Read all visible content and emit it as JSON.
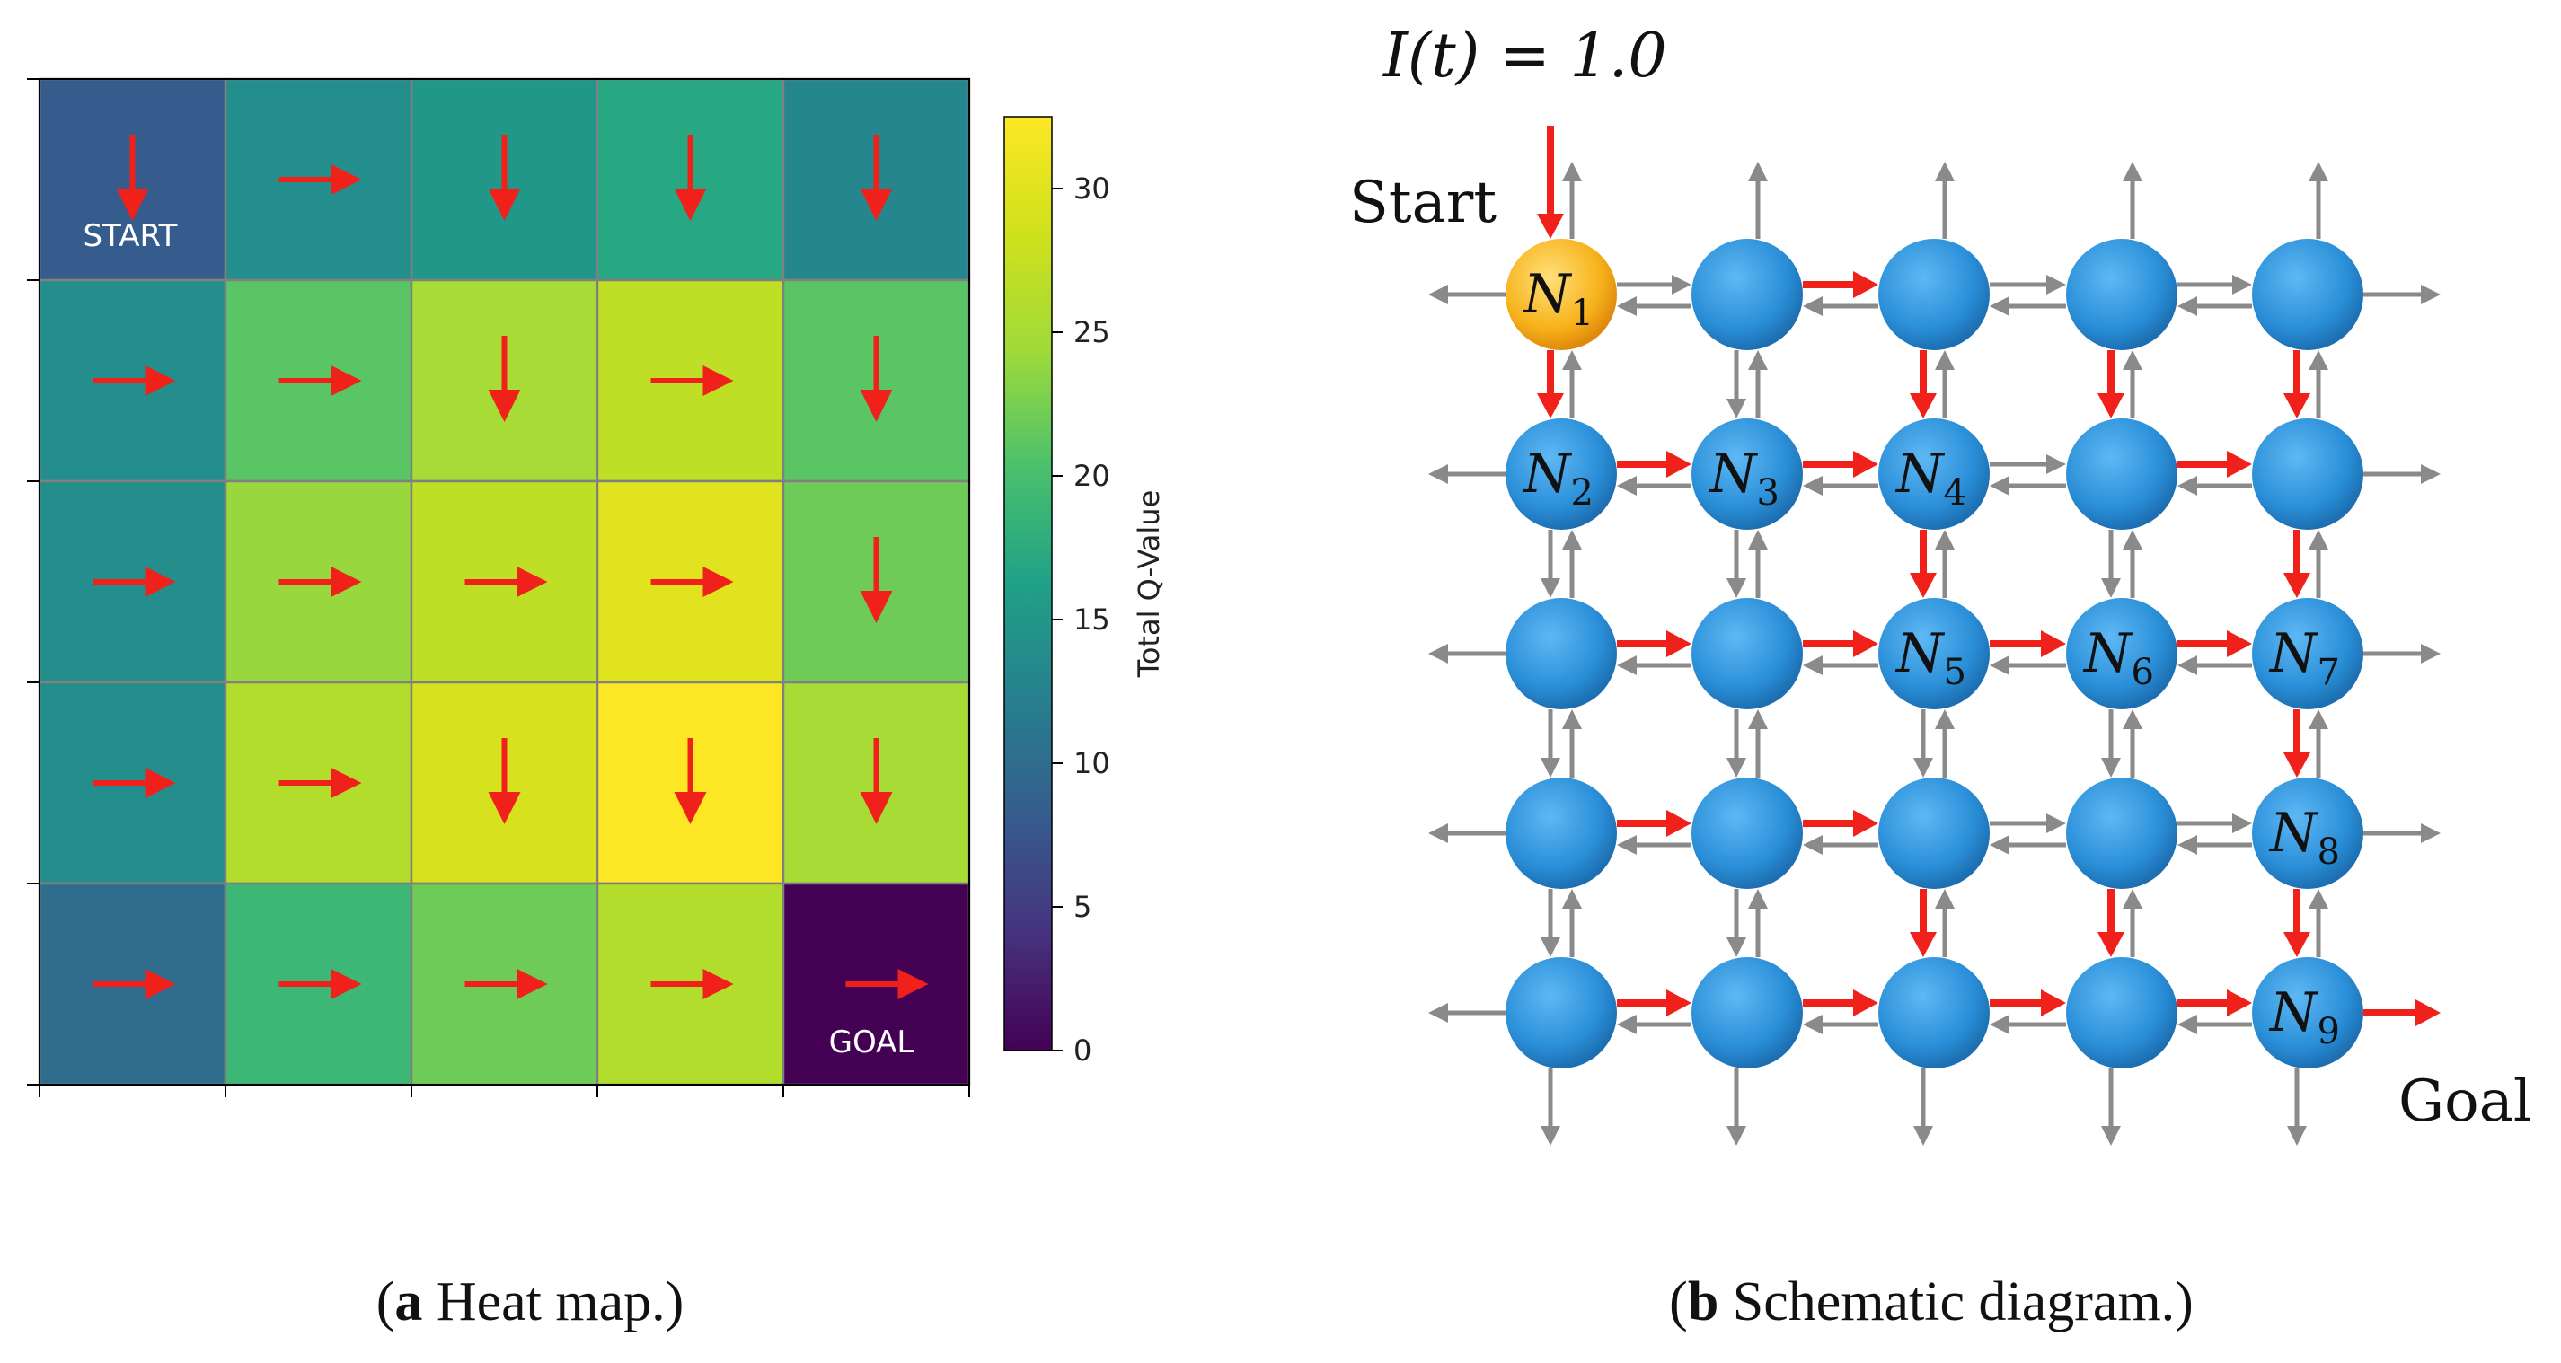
{
  "colors": {
    "arrow_red": "#f0201a",
    "arrow_gray": "#8a8a8a",
    "node_blue": "#2a8fd8",
    "node_highlight": "#f7b21b",
    "grid_line": "#808080"
  },
  "chart_data": [
    {
      "type": "heatmap",
      "title": "",
      "colorbar_label": "Total Q-Value",
      "colorbar_range": [
        0,
        32.5
      ],
      "colorbar_ticks": [
        0,
        5,
        10,
        15,
        20,
        25,
        30
      ],
      "colormap": "viridis",
      "rows": 5,
      "cols": 5,
      "values": [
        [
          8,
          14,
          15,
          17,
          13
        ],
        [
          14,
          21,
          25,
          27,
          21
        ],
        [
          14,
          24,
          27,
          30,
          22
        ],
        [
          14,
          26,
          29,
          32.5,
          25
        ],
        [
          10,
          19,
          22,
          26,
          0
        ]
      ],
      "policy": [
        [
          "down",
          "right",
          "down",
          "down",
          "down"
        ],
        [
          "right",
          "right",
          "down",
          "right",
          "down"
        ],
        [
          "right",
          "right",
          "right",
          "right",
          "down"
        ],
        [
          "right",
          "right",
          "down",
          "down",
          "down"
        ],
        [
          "right",
          "right",
          "right",
          "right",
          "right"
        ]
      ],
      "start_label": "START",
      "goal_label": "GOAL",
      "start_cell": [
        0,
        0
      ],
      "goal_cell": [
        4,
        4
      ]
    }
  ],
  "diagram": {
    "input_label": "I(t) = 1.0",
    "start_label": "Start",
    "goal_label": "Goal",
    "rows": 5,
    "cols": 5,
    "highlight_node": [
      0,
      0
    ],
    "nodes": [
      {
        "row": 0,
        "col": 0,
        "sub": "1"
      },
      {
        "row": 1,
        "col": 0,
        "sub": "2"
      },
      {
        "row": 1,
        "col": 1,
        "sub": "3"
      },
      {
        "row": 1,
        "col": 2,
        "sub": "4"
      },
      {
        "row": 2,
        "col": 2,
        "sub": "5"
      },
      {
        "row": 2,
        "col": 3,
        "sub": "6"
      },
      {
        "row": 2,
        "col": 4,
        "sub": "7"
      },
      {
        "row": 3,
        "col": 4,
        "sub": "8"
      },
      {
        "row": 4,
        "col": 4,
        "sub": "9"
      }
    ],
    "node_letter": "N",
    "red_right": [
      [
        0,
        1
      ],
      [
        1,
        0
      ],
      [
        1,
        1
      ],
      [
        1,
        3
      ],
      [
        2,
        0
      ],
      [
        2,
        1
      ],
      [
        2,
        2
      ],
      [
        2,
        3
      ],
      [
        3,
        0
      ],
      [
        3,
        1
      ],
      [
        4,
        0
      ],
      [
        4,
        1
      ],
      [
        4,
        2
      ],
      [
        4,
        3
      ],
      [
        4,
        4
      ]
    ],
    "red_down": [
      [
        0,
        0
      ],
      [
        0,
        2
      ],
      [
        0,
        3
      ],
      [
        0,
        4
      ],
      [
        1,
        2
      ],
      [
        1,
        4
      ],
      [
        2,
        4
      ],
      [
        3,
        2
      ],
      [
        3,
        3
      ],
      [
        3,
        4
      ]
    ]
  },
  "captions": {
    "a_letter": "a",
    "a_text": " Heat map.",
    "b_letter": "b",
    "b_text": " Schematic diagram."
  }
}
